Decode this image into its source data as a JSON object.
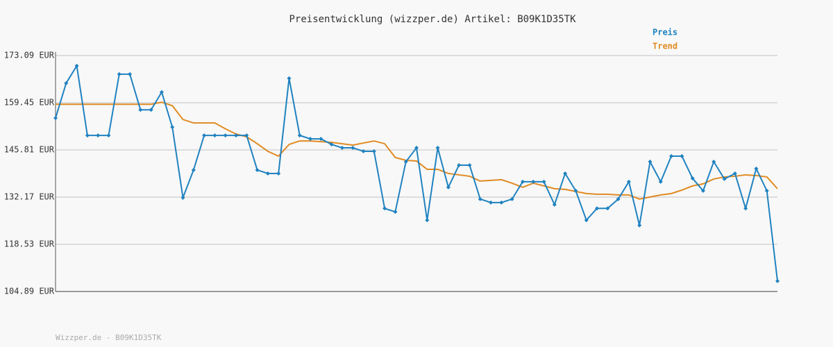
{
  "chart_data": {
    "type": "line",
    "title": "Preisentwicklung (wizzper.de) Artikel: B09K1D35TK",
    "series": [
      {
        "name": "Preis",
        "color": "#1f82c0",
        "markers": true,
        "values": [
          155.0,
          165.1,
          170.1,
          150.0,
          150.0,
          150.0,
          167.7,
          167.7,
          157.4,
          157.4,
          162.5,
          152.4,
          132.0,
          140.0,
          150.0,
          150.0,
          150.0,
          150.0,
          150.0,
          140.0,
          139.0,
          139.0,
          166.5,
          150.0,
          149.0,
          149.0,
          147.4,
          146.4,
          146.4,
          145.4,
          145.4,
          128.9,
          127.9,
          142.4,
          146.4,
          125.5,
          146.4,
          135.0,
          141.4,
          141.4,
          131.6,
          130.6,
          130.6,
          131.6,
          136.6,
          136.6,
          136.6,
          130.0,
          139.0,
          134.0,
          125.5,
          128.9,
          128.9,
          131.6,
          136.6,
          124.0,
          142.4,
          136.6,
          144.0,
          144.0,
          137.6,
          134.0,
          142.4,
          137.4,
          139.0,
          128.9,
          140.4,
          134.0,
          107.9
        ]
      },
      {
        "name": "Trend",
        "color": "#e08a22",
        "markers": false,
        "values": [
          159.0,
          159.0,
          159.0,
          159.0,
          159.0,
          159.0,
          159.0,
          159.0,
          159.0,
          159.0,
          159.6,
          158.6,
          154.6,
          153.6,
          153.6,
          153.6,
          151.9,
          150.4,
          149.6,
          147.6,
          145.4,
          144.0,
          147.4,
          148.4,
          148.4,
          148.2,
          148.0,
          147.6,
          147.2,
          147.8,
          148.4,
          147.6,
          143.6,
          142.8,
          142.6,
          140.2,
          140.2,
          139.0,
          138.6,
          138.2,
          136.8,
          137.0,
          137.2,
          136.2,
          135.0,
          136.2,
          135.4,
          134.6,
          134.4,
          133.8,
          133.2,
          133.0,
          133.0,
          132.8,
          132.8,
          131.6,
          132.2,
          132.8,
          133.2,
          134.2,
          135.4,
          136.0,
          137.4,
          138.0,
          138.2,
          138.6,
          138.4,
          138.0,
          134.6
        ]
      }
    ],
    "ylim": [
      104.89,
      173.09
    ],
    "yticks": [
      {
        "value": 104.89,
        "label": "104.89 EUR"
      },
      {
        "value": 118.53,
        "label": "118.53 EUR"
      },
      {
        "value": 132.17,
        "label": "132.17 EUR"
      },
      {
        "value": 145.81,
        "label": "145.81 EUR"
      },
      {
        "value": 159.45,
        "label": "159.45 EUR"
      },
      {
        "value": 173.09,
        "label": "173.09 EUR"
      }
    ],
    "grid": true,
    "legend": "top-right",
    "footer": "Wizzper.de - B09K1D35TK"
  }
}
